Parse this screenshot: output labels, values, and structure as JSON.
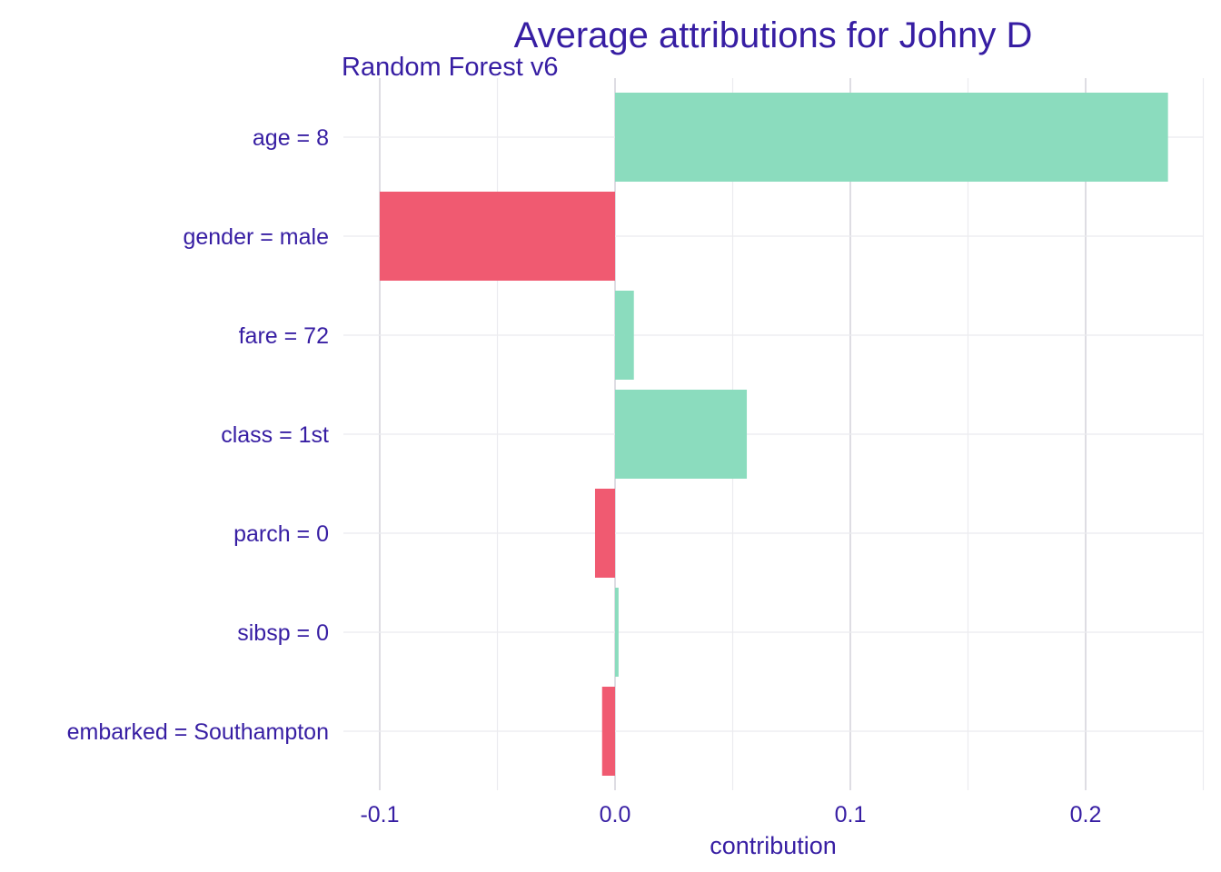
{
  "chart_data": {
    "type": "bar",
    "orientation": "horizontal",
    "title": "Average attributions for Johny D",
    "subtitle": "Random Forest v6",
    "xlabel": "contribution",
    "ylabel": "",
    "xlim": [
      -0.1,
      0.25
    ],
    "x_ticks": [
      -0.1,
      0.0,
      0.1,
      0.2
    ],
    "x_tick_labels": [
      "-0.1",
      "0.0",
      "0.1",
      "0.2"
    ],
    "categories": [
      "age = 8",
      "gender = male",
      "fare = 72",
      "class = 1st",
      "parch = 0",
      "sibsp = 0",
      "embarked = Southampton"
    ],
    "values": [
      0.235,
      -0.1,
      0.008,
      0.056,
      -0.0085,
      0.0015,
      -0.0055
    ],
    "colors": {
      "positive": "#8bdcbe",
      "negative": "#f05a71",
      "text": "#371ea3",
      "grid": "#dedde3"
    },
    "grid": true,
    "legend": "none"
  }
}
